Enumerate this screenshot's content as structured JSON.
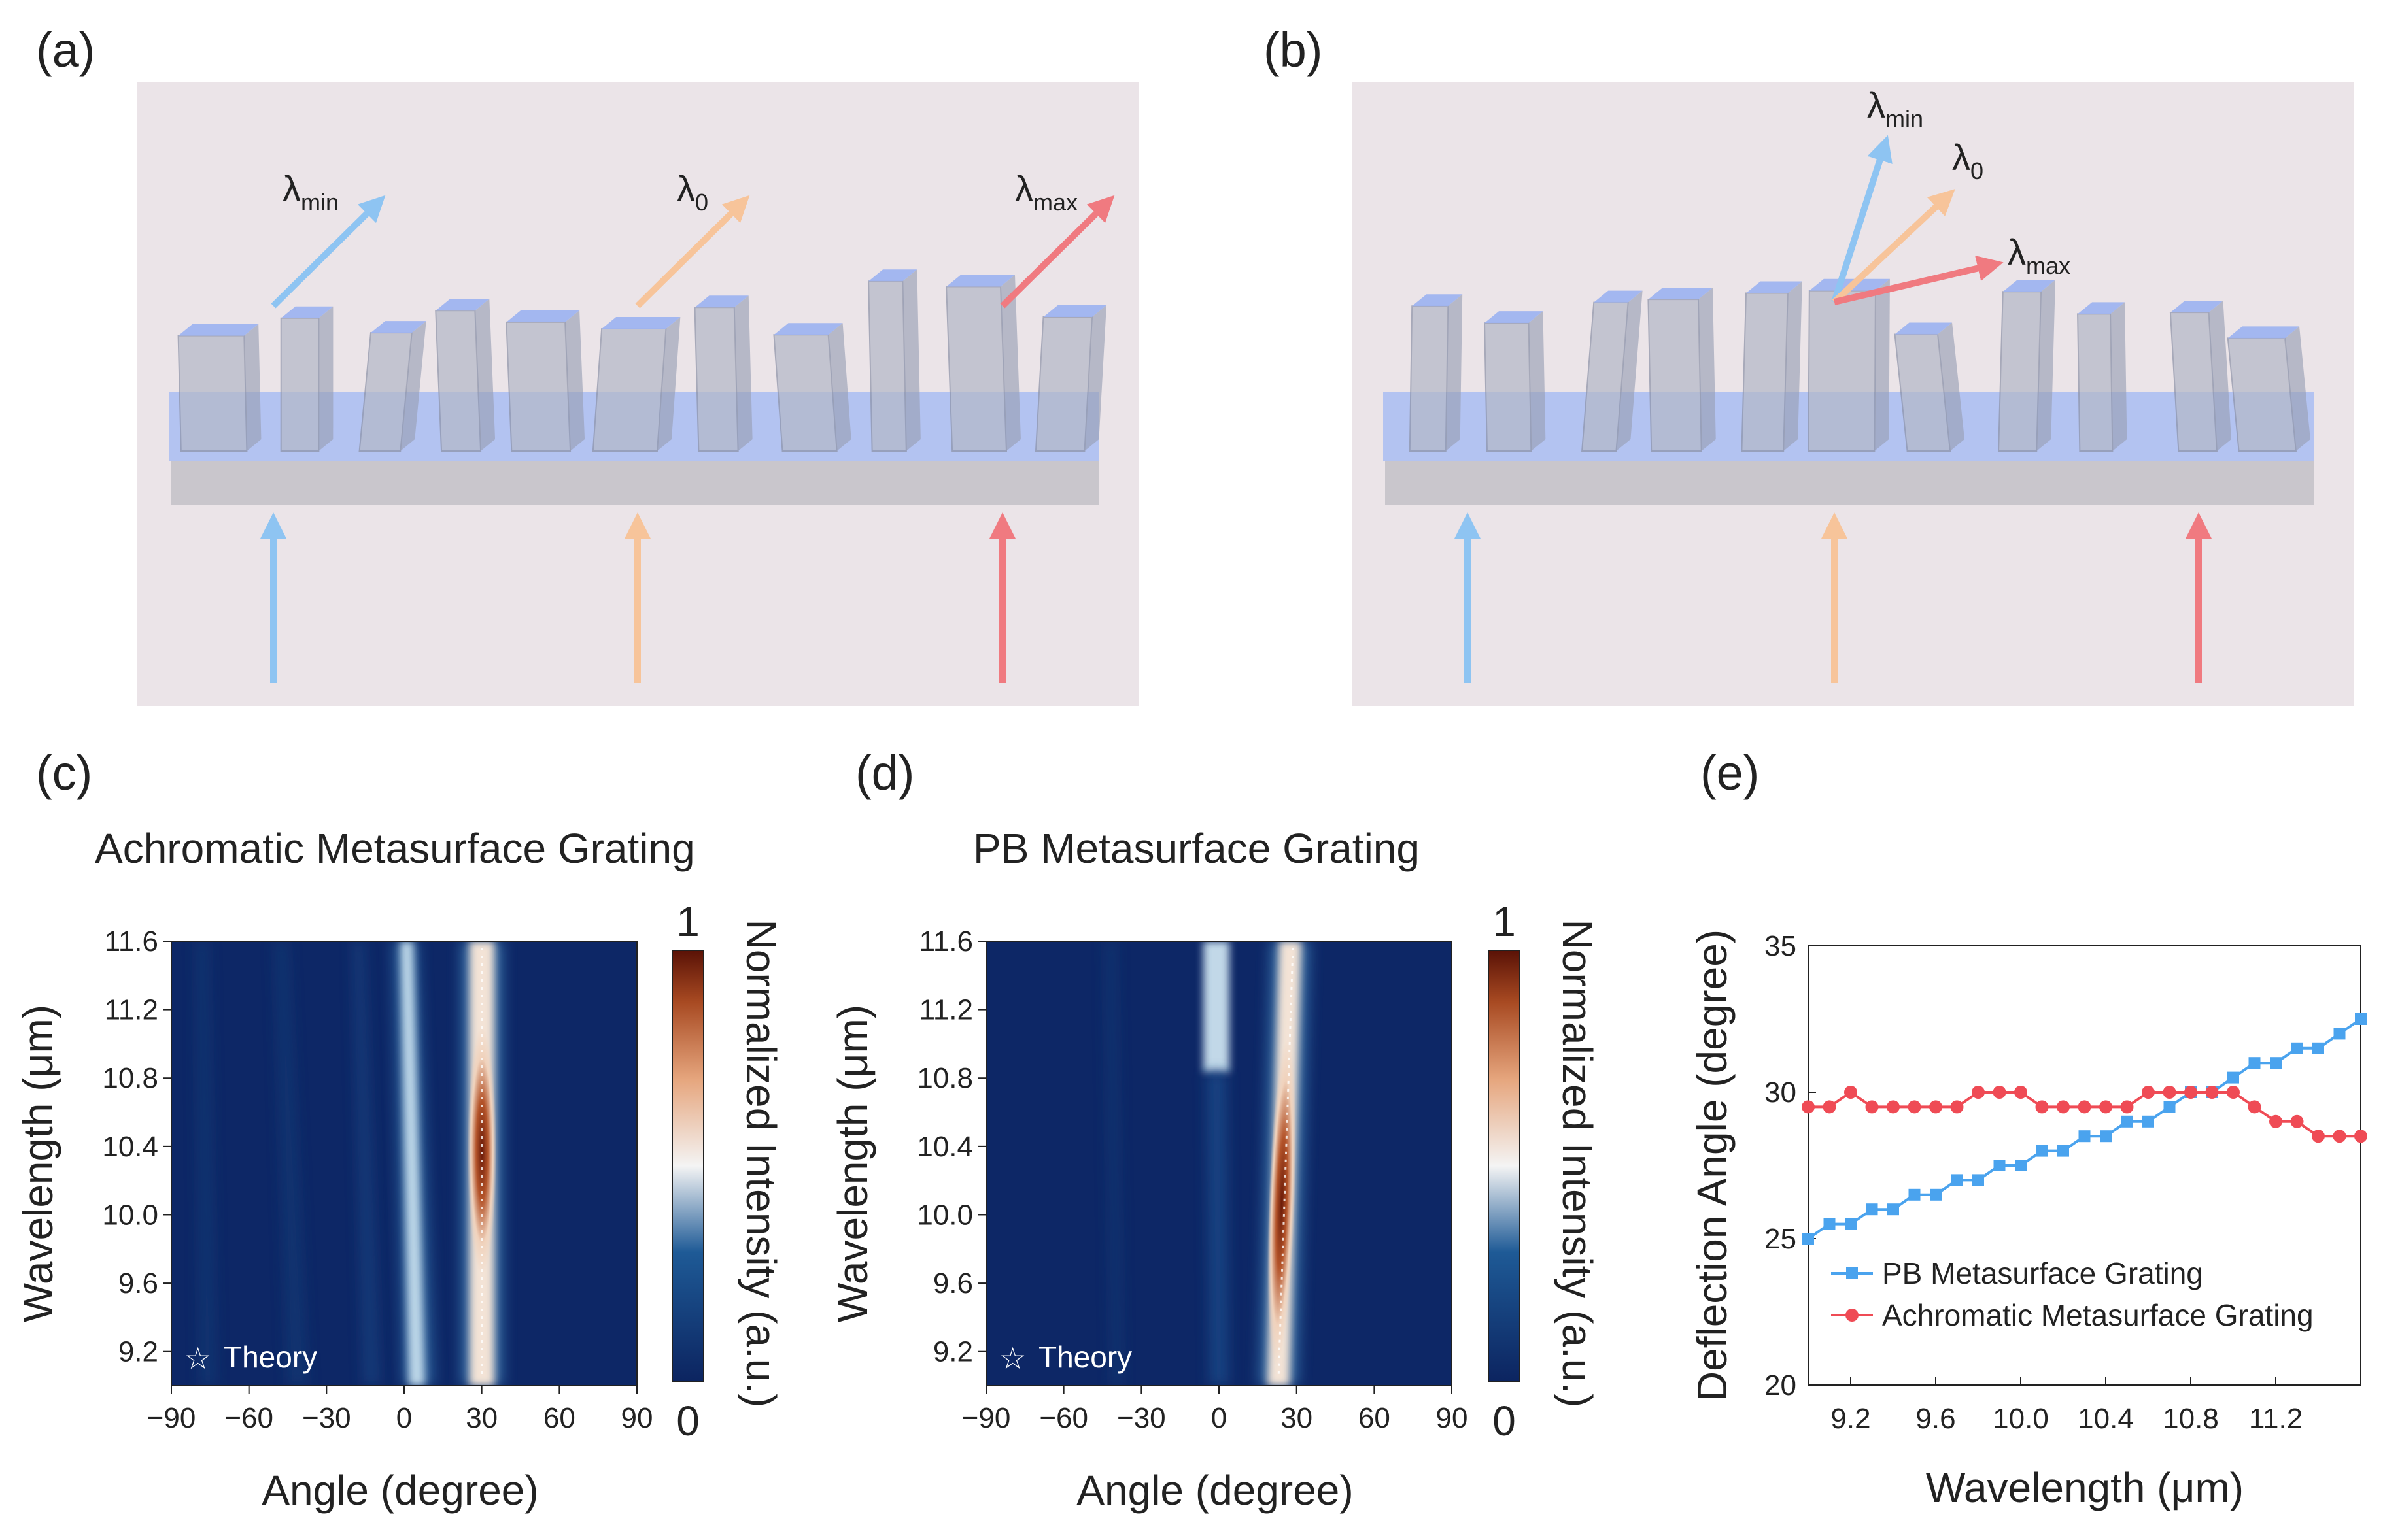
{
  "panels": {
    "a": "(a)",
    "b": "(b)",
    "c": "(c)",
    "d": "(d)",
    "e": "(e)"
  },
  "lambda": {
    "symbol": "λ",
    "min_sub": "min",
    "zero_sub": "0",
    "max_sub": "max"
  },
  "colors": {
    "min": "#8ec4f2",
    "zero": "#f7c49a",
    "max": "#f07a80",
    "substrate_top": "#a9bdf2",
    "background": "#ebe4e8",
    "pb_series": "#4aa3ee",
    "ach_series": "#ef4b55"
  },
  "heatmap_c": {
    "title": "Achromatic Metasurface Grating",
    "xlabel": "Angle (degree)",
    "ylabel": "Wavelength (μm)",
    "colorbar_label": "Normalized Intensity (a.u.)",
    "colorbar_max": "1",
    "colorbar_min": "0",
    "xticks": [
      "−90",
      "−60",
      "−30",
      "0",
      "30",
      "60",
      "90"
    ],
    "yticks": [
      "11.6",
      "11.2",
      "10.8",
      "10.4",
      "10.0",
      "9.6",
      "9.2"
    ],
    "theory_label": "Theory"
  },
  "heatmap_d": {
    "title": "PB Metasurface Grating",
    "xlabel": "Angle (degree)",
    "ylabel": "Wavelength (μm)",
    "colorbar_label": "Normalized Intensity (a.u.)",
    "colorbar_max": "1",
    "colorbar_min": "0",
    "xticks": [
      "−90",
      "−60",
      "−30",
      "0",
      "30",
      "60",
      "90"
    ],
    "yticks": [
      "11.6",
      "11.2",
      "10.8",
      "10.4",
      "10.0",
      "9.6",
      "9.2"
    ],
    "theory_label": "Theory"
  },
  "chart_data": [
    {
      "type": "heatmap",
      "title": "Achromatic Metasurface Grating",
      "xlabel": "Angle (degree)",
      "ylabel": "Wavelength (μm)",
      "xlim": [
        -90,
        90
      ],
      "ylim": [
        9.0,
        11.6
      ],
      "zlim": [
        0,
        1
      ],
      "zlabel": "Normalized Intensity (a.u.)",
      "peak_angle_vs_wavelength": {
        "wavelength": [
          9.0,
          11.6
        ],
        "angle": [
          30,
          30
        ]
      },
      "zero_order_angle": 0
    },
    {
      "type": "heatmap",
      "title": "PB Metasurface Grating",
      "xlabel": "Angle (degree)",
      "ylabel": "Wavelength (μm)",
      "xlim": [
        -90,
        90
      ],
      "ylim": [
        9.0,
        11.6
      ],
      "zlim": [
        0,
        1
      ],
      "zlabel": "Normalized Intensity (a.u.)",
      "peak_angle_vs_wavelength": {
        "wavelength": [
          9.0,
          11.6
        ],
        "angle": [
          25,
          32.5
        ]
      },
      "zero_order_angle": 0
    },
    {
      "type": "line",
      "title": "",
      "xlabel": "Wavelength (μm)",
      "ylabel": "Deflection Angle (degree)",
      "xlim": [
        9.0,
        11.6
      ],
      "ylim": [
        20,
        35
      ],
      "xticks": [
        "9.2",
        "9.6",
        "10.0",
        "10.4",
        "10.8",
        "11.2"
      ],
      "yticks": [
        "35",
        "30",
        "25",
        "20"
      ],
      "legend_position": "lower-left",
      "x": [
        9.0,
        9.1,
        9.2,
        9.3,
        9.4,
        9.5,
        9.6,
        9.7,
        9.8,
        9.9,
        10.0,
        10.1,
        10.2,
        10.3,
        10.4,
        10.5,
        10.6,
        10.7,
        10.8,
        10.9,
        11.0,
        11.1,
        11.2,
        11.3,
        11.4,
        11.5,
        11.6
      ],
      "series": [
        {
          "name": "PB Metasurface Grating",
          "marker": "square",
          "values": [
            25.0,
            25.5,
            25.5,
            26.0,
            26.0,
            26.5,
            26.5,
            27.0,
            27.0,
            27.5,
            27.5,
            28.0,
            28.0,
            28.5,
            28.5,
            29.0,
            29.0,
            29.5,
            30.0,
            30.0,
            30.5,
            31.0,
            31.0,
            31.5,
            31.5,
            32.0,
            32.5
          ]
        },
        {
          "name": "Achromatic Metasurface Grating",
          "marker": "circle",
          "values": [
            29.5,
            29.5,
            30.0,
            29.5,
            29.5,
            29.5,
            29.5,
            29.5,
            30.0,
            30.0,
            30.0,
            29.5,
            29.5,
            29.5,
            29.5,
            29.5,
            30.0,
            30.0,
            30.0,
            30.0,
            30.0,
            29.5,
            29.0,
            29.0,
            28.5,
            28.5,
            28.5
          ]
        }
      ]
    }
  ]
}
